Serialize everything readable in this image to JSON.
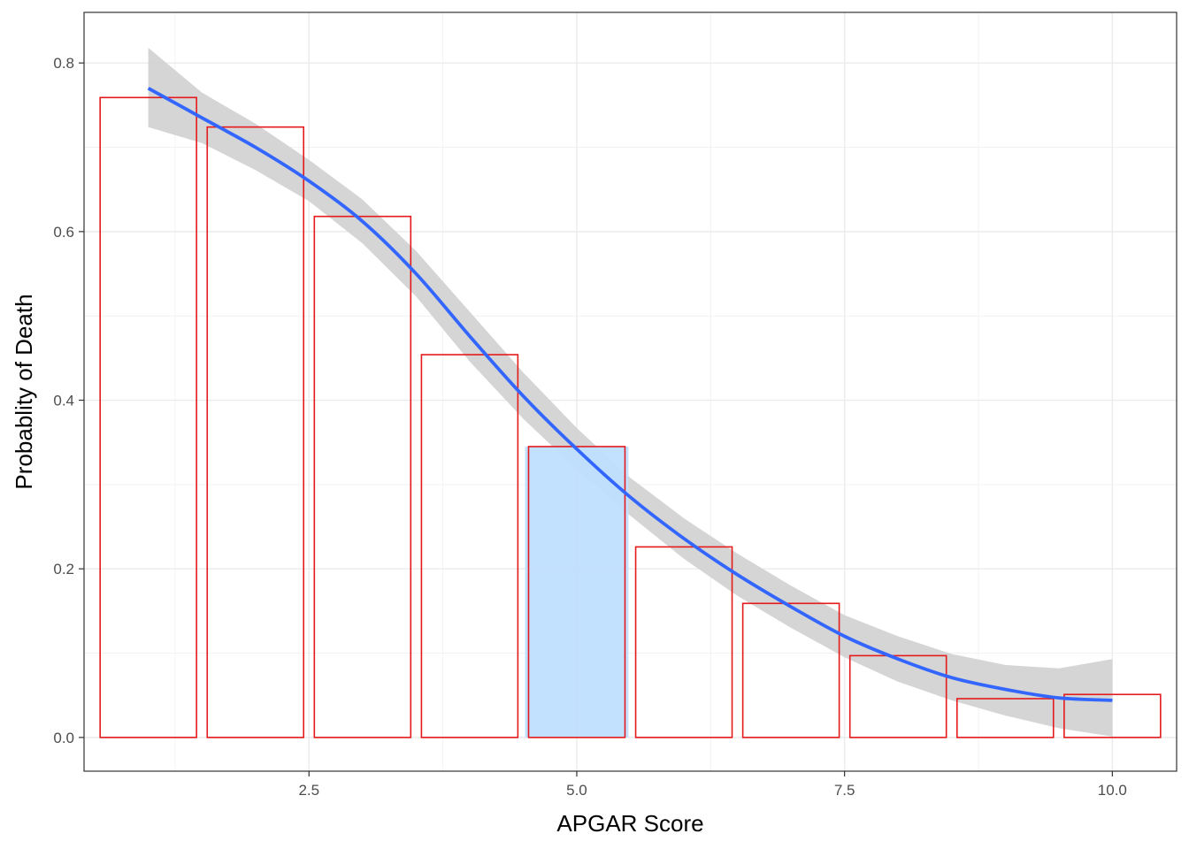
{
  "chart_data": {
    "type": "bar",
    "xlabel": "APGAR Score",
    "ylabel": "Probablity of Death",
    "xlim": [
      0.4,
      10.6
    ],
    "ylim": [
      -0.04,
      0.86
    ],
    "x_ticks": [
      "2.5",
      "5.0",
      "7.5",
      "10.0"
    ],
    "x_tick_values": [
      2.5,
      5.0,
      7.5,
      10.0
    ],
    "y_ticks": [
      "0.0",
      "0.2",
      "0.4",
      "0.6",
      "0.8"
    ],
    "y_tick_values": [
      0.0,
      0.2,
      0.4,
      0.6,
      0.8
    ],
    "grid": true,
    "categories": [
      1,
      2,
      3,
      4,
      5,
      6,
      7,
      8,
      9,
      10
    ],
    "values": [
      0.759,
      0.724,
      0.618,
      0.454,
      0.345,
      0.226,
      0.159,
      0.097,
      0.046,
      0.051
    ],
    "highlighted_category": 5,
    "smooth": {
      "x": [
        1,
        1.5,
        2,
        2.5,
        3,
        3.5,
        4,
        4.5,
        5,
        5.5,
        6,
        6.5,
        7,
        7.5,
        8,
        8.5,
        9,
        9.5,
        10
      ],
      "y": [
        0.77,
        0.735,
        0.7,
        0.66,
        0.612,
        0.55,
        0.476,
        0.405,
        0.342,
        0.285,
        0.236,
        0.193,
        0.155,
        0.12,
        0.093,
        0.071,
        0.057,
        0.047,
        0.044
      ],
      "ci_low": [
        0.724,
        0.705,
        0.673,
        0.636,
        0.586,
        0.523,
        0.446,
        0.378,
        0.318,
        0.263,
        0.212,
        0.168,
        0.13,
        0.095,
        0.066,
        0.044,
        0.026,
        0.011,
        0.001
      ],
      "ci_high": [
        0.818,
        0.765,
        0.728,
        0.685,
        0.638,
        0.577,
        0.505,
        0.433,
        0.367,
        0.308,
        0.26,
        0.218,
        0.18,
        0.145,
        0.12,
        0.099,
        0.086,
        0.082,
        0.093
      ]
    },
    "colors": {
      "bar_outline": "#e41a1c",
      "highlight_fill": "#bfdfff",
      "smooth_line": "#3366ff",
      "ci_band": "#d3d3d3",
      "grid_major": "#ebebeb",
      "grid_minor": "#f2f2f2",
      "panel_border": "#333333"
    }
  }
}
